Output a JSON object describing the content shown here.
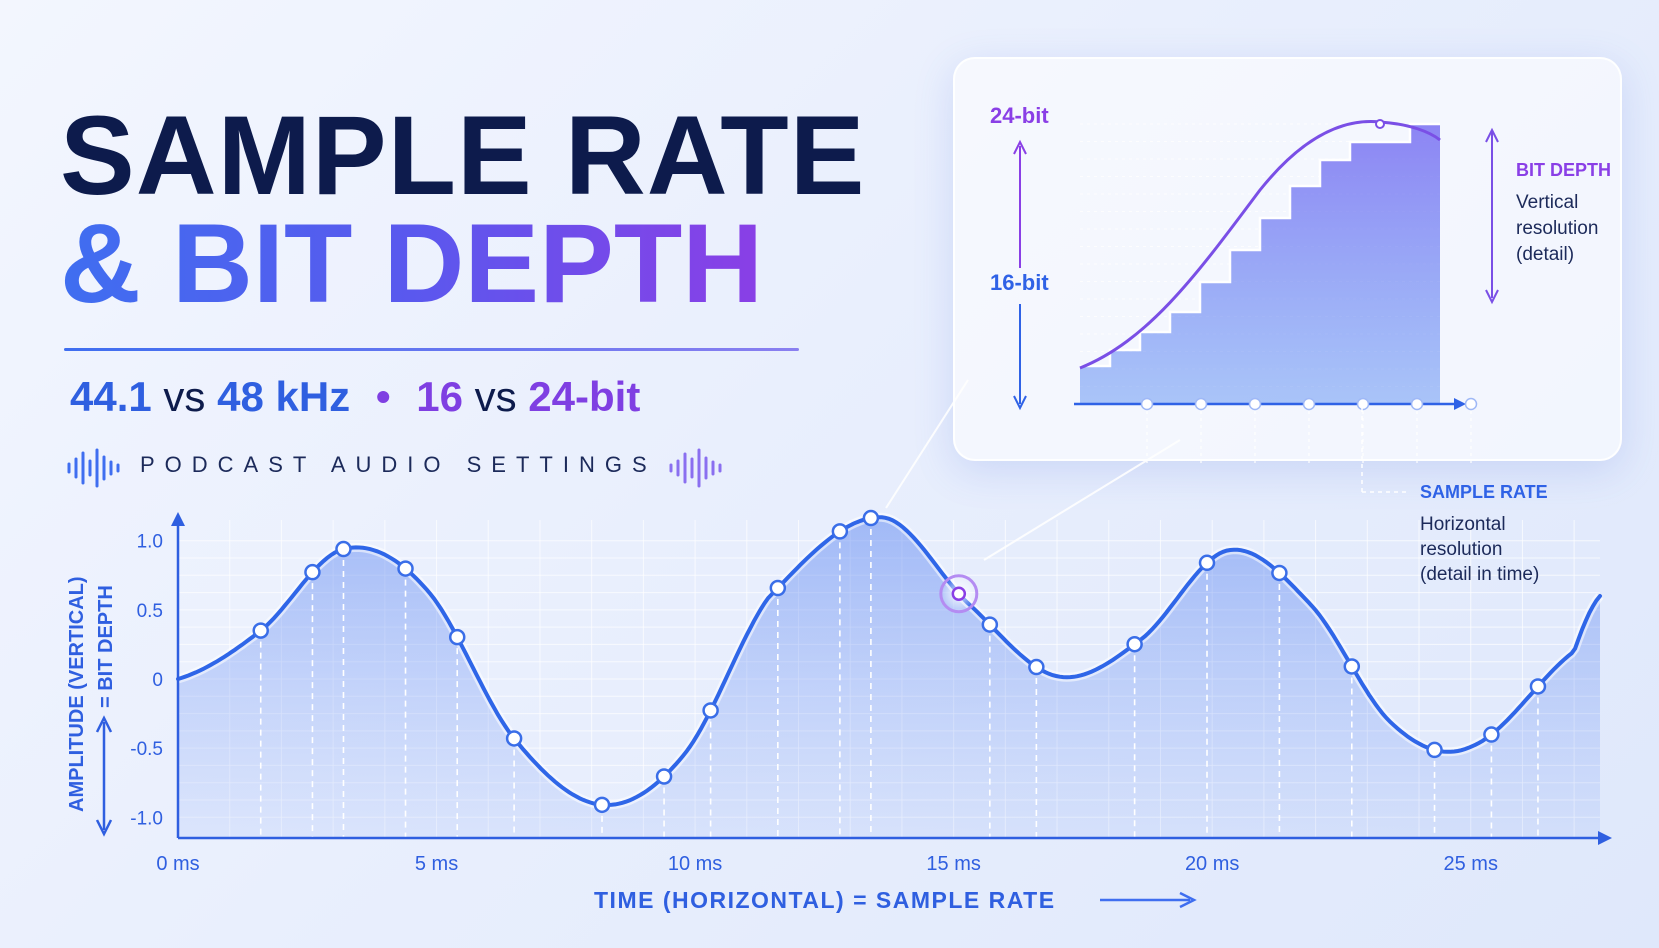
{
  "title": {
    "line1": "SAMPLE RATE",
    "line2": "& BIT DEPTH"
  },
  "subtitle": {
    "a": "44.1",
    "vs1": "vs",
    "b": "48 kHz",
    "sep": "•",
    "c": "16",
    "vs2": "vs",
    "d": "24-bit"
  },
  "tagline": "PODCAST AUDIO SETTINGS",
  "inset": {
    "label_top": "24-bit",
    "label_mid": "16-bit",
    "bit_depth_title": "BIT DEPTH",
    "bit_depth_desc": [
      "Vertical",
      "resolution",
      "(detail)"
    ],
    "sample_rate_title": "SAMPLE RATE",
    "sample_rate_desc": [
      "Horizontal",
      "resolution",
      "(detail in time)"
    ]
  },
  "colors": {
    "navy": "#0d1b4c",
    "blue": "#2f62e6",
    "purple": "#8a3fe6"
  },
  "chart_data": {
    "type": "line",
    "xlabel": "TIME (HORIZONTAL) = SAMPLE RATE",
    "ylabel_part1": "AMPLITUDE (VERTICAL)",
    "ylabel_part2": "= BIT DEPTH",
    "x_ticks": [
      "0 ms",
      "5 ms",
      "10 ms",
      "15 ms",
      "20 ms",
      "25 ms"
    ],
    "y_ticks": [
      "1.0",
      "0.5",
      "0",
      "-0.5",
      "-1.0"
    ],
    "xlim": [
      0,
      27.5
    ],
    "ylim": [
      -1.15,
      1.15
    ],
    "grid": true,
    "series": [
      {
        "x": [
          0,
          1.6,
          3.2,
          4.8,
          6.5,
          8.2,
          9.8,
          11.4,
          13.6,
          15.3,
          17.0,
          18.6,
          20.3,
          21.9,
          23.5,
          25.0,
          27.0,
          27.5
        ],
        "values": [
          0,
          0.35,
          0.94,
          0.65,
          -0.43,
          -0.91,
          -0.54,
          0.58,
          1.17,
          0.54,
          0.02,
          0.28,
          0.93,
          0.54,
          -0.33,
          -0.49,
          0.2,
          0.6
        ]
      }
    ],
    "samples_x": [
      1.6,
      2.6,
      3.2,
      4.4,
      5.4,
      6.5,
      8.2,
      9.4,
      10.3,
      11.6,
      12.8,
      13.4,
      15.7,
      16.6,
      18.5,
      19.9,
      21.3,
      22.7,
      24.3,
      25.4,
      26.3
    ]
  }
}
